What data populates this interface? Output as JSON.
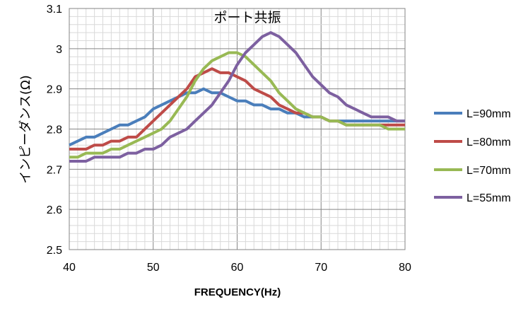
{
  "chart_data": {
    "type": "line",
    "title": "ポート共振",
    "xlabel": "FREQUENCY(Hz)",
    "ylabel": "インピーダンス(Ω)",
    "xlim": [
      40,
      80
    ],
    "ylim": [
      2.5,
      3.1
    ],
    "xticks": [
      "40",
      "50",
      "60",
      "70",
      "80"
    ],
    "yticks": [
      "2.5",
      "2.6",
      "2.7",
      "2.8",
      "2.9",
      "3",
      "3.1"
    ],
    "grid": true,
    "legend_position": "right",
    "x": [
      40,
      41,
      42,
      43,
      44,
      45,
      46,
      47,
      48,
      49,
      50,
      51,
      52,
      53,
      54,
      55,
      56,
      57,
      58,
      59,
      60,
      61,
      62,
      63,
      64,
      65,
      66,
      67,
      68,
      69,
      70,
      71,
      72,
      73,
      74,
      75,
      76,
      77,
      78,
      79,
      80
    ],
    "series": [
      {
        "name": "L=90mm",
        "color": "#4a7ebb",
        "values": [
          2.76,
          2.77,
          2.78,
          2.78,
          2.79,
          2.8,
          2.81,
          2.81,
          2.82,
          2.83,
          2.85,
          2.86,
          2.87,
          2.88,
          2.89,
          2.89,
          2.9,
          2.89,
          2.89,
          2.88,
          2.87,
          2.87,
          2.86,
          2.86,
          2.85,
          2.85,
          2.84,
          2.84,
          2.83,
          2.83,
          2.83,
          2.82,
          2.82,
          2.82,
          2.82,
          2.82,
          2.82,
          2.82,
          2.82,
          2.82,
          2.82
        ]
      },
      {
        "name": "L=80mm",
        "color": "#be4b48",
        "values": [
          2.75,
          2.75,
          2.75,
          2.76,
          2.76,
          2.77,
          2.77,
          2.78,
          2.78,
          2.8,
          2.82,
          2.84,
          2.86,
          2.88,
          2.9,
          2.93,
          2.94,
          2.95,
          2.94,
          2.94,
          2.93,
          2.92,
          2.9,
          2.89,
          2.88,
          2.86,
          2.85,
          2.84,
          2.84,
          2.83,
          2.83,
          2.82,
          2.82,
          2.81,
          2.81,
          2.81,
          2.81,
          2.81,
          2.81,
          2.81,
          2.81
        ]
      },
      {
        "name": "L=70mm",
        "color": "#98b954",
        "values": [
          2.73,
          2.73,
          2.74,
          2.74,
          2.74,
          2.75,
          2.75,
          2.76,
          2.77,
          2.78,
          2.79,
          2.8,
          2.82,
          2.85,
          2.88,
          2.92,
          2.95,
          2.97,
          2.98,
          2.99,
          2.99,
          2.98,
          2.96,
          2.94,
          2.92,
          2.89,
          2.87,
          2.85,
          2.84,
          2.83,
          2.83,
          2.82,
          2.82,
          2.81,
          2.81,
          2.81,
          2.81,
          2.81,
          2.8,
          2.8,
          2.8
        ]
      },
      {
        "name": "L=55mm",
        "color": "#7d60a0",
        "values": [
          2.72,
          2.72,
          2.72,
          2.73,
          2.73,
          2.73,
          2.73,
          2.74,
          2.74,
          2.75,
          2.75,
          2.76,
          2.78,
          2.79,
          2.8,
          2.82,
          2.84,
          2.86,
          2.89,
          2.92,
          2.96,
          2.99,
          3.01,
          3.03,
          3.04,
          3.03,
          3.01,
          2.99,
          2.96,
          2.93,
          2.91,
          2.89,
          2.88,
          2.86,
          2.85,
          2.84,
          2.83,
          2.83,
          2.83,
          2.82,
          2.82
        ]
      }
    ]
  }
}
